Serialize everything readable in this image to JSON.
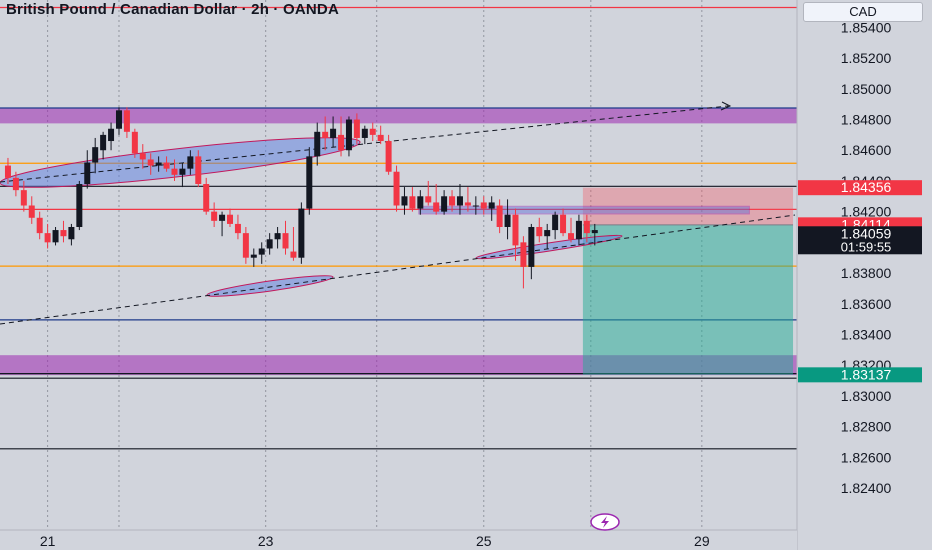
{
  "chart_data": {
    "type": "candlestick",
    "title": "British Pound / Canadian Dollar · 2h · OANDA",
    "currency": "CAD",
    "y_ticks": [
      "1.85400",
      "1.85200",
      "1.85000",
      "1.84800",
      "1.84600",
      "1.84400",
      "1.84200",
      "1.84000",
      "1.83800",
      "1.83600",
      "1.83400",
      "1.83200",
      "1.83000",
      "1.82800",
      "1.82600",
      "1.82400"
    ],
    "x_ticks": [
      {
        "label": "21",
        "t": 5.5
      },
      {
        "label": "23",
        "t": 33
      },
      {
        "label": "25",
        "t": 60.5
      },
      {
        "label": "29",
        "t": 88
      }
    ],
    "ylim": [
      1.8225,
      1.8552
    ],
    "price_labels": [
      {
        "name": "target",
        "value": 1.84356,
        "text": "1.84356",
        "color": "#f23645"
      },
      {
        "name": "entry",
        "value": 1.84114,
        "text": "1.84114",
        "color": "#f23645"
      },
      {
        "name": "last-price",
        "value": 1.84059,
        "text": "1.84059",
        "color": "#131722",
        "countdown": "01:59:55"
      },
      {
        "name": "stop",
        "value": 1.83137,
        "text": "1.83137",
        "color": "#089981"
      }
    ],
    "zones": [
      {
        "top": 1.84875,
        "bottom": 1.84775,
        "color": "#9c27b0"
      },
      {
        "top": 1.83265,
        "bottom": 1.83135,
        "color": "#9c27b0"
      }
    ],
    "h_lines": [
      {
        "value": 1.84875,
        "color": "#1e3a8a",
        "dash": ""
      },
      {
        "value": 1.84515,
        "color": "#ff9800",
        "dash": ""
      },
      {
        "value": 1.84365,
        "color": "#131722",
        "dash": ""
      },
      {
        "value": 1.84215,
        "color": "#f23645",
        "dash": ""
      },
      {
        "value": 1.83845,
        "color": "#ff9800",
        "dash": ""
      },
      {
        "value": 1.83495,
        "color": "#1e3a8a",
        "dash": ""
      },
      {
        "value": 1.83145,
        "color": "#131722",
        "dash": ""
      },
      {
        "value": 1.83115,
        "color": "#131722",
        "dash": ""
      },
      {
        "value": 1.82655,
        "color": "#131722",
        "dash": ""
      },
      {
        "value": 1.8553,
        "color": "#f23645",
        "dash": ""
      }
    ],
    "position": {
      "t_start": 73,
      "t_end": 99.5,
      "entry": 1.84114,
      "target": 1.84356,
      "stop": 1.83137
    },
    "candles": [
      [
        1.845,
        1.8455,
        1.8438,
        1.8442
      ],
      [
        1.8442,
        1.8446,
        1.843,
        1.8434
      ],
      [
        1.8434,
        1.844,
        1.842,
        1.8424
      ],
      [
        1.8424,
        1.843,
        1.8412,
        1.8416
      ],
      [
        1.8416,
        1.842,
        1.8402,
        1.8406
      ],
      [
        1.8406,
        1.8412,
        1.8396,
        1.84
      ],
      [
        1.84,
        1.841,
        1.8398,
        1.8408
      ],
      [
        1.8408,
        1.8414,
        1.84,
        1.8404
      ],
      [
        1.8402,
        1.8412,
        1.8398,
        1.841
      ],
      [
        1.841,
        1.844,
        1.8408,
        1.8438
      ],
      [
        1.8438,
        1.846,
        1.8435,
        1.8452
      ],
      [
        1.8452,
        1.8468,
        1.8445,
        1.8462
      ],
      [
        1.846,
        1.8472,
        1.8454,
        1.847
      ],
      [
        1.8466,
        1.8478,
        1.846,
        1.8474
      ],
      [
        1.8474,
        1.8488,
        1.847,
        1.8486
      ],
      [
        1.8486,
        1.8488,
        1.8468,
        1.8472
      ],
      [
        1.8472,
        1.8474,
        1.8455,
        1.8458
      ],
      [
        1.8458,
        1.8464,
        1.8448,
        1.8454
      ],
      [
        1.8454,
        1.8458,
        1.8444,
        1.845
      ],
      [
        1.845,
        1.8456,
        1.8446,
        1.8452
      ],
      [
        1.8452,
        1.8456,
        1.8446,
        1.8448
      ],
      [
        1.8448,
        1.8454,
        1.844,
        1.8444
      ],
      [
        1.8444,
        1.8452,
        1.8436,
        1.8448
      ],
      [
        1.8448,
        1.846,
        1.8444,
        1.8456
      ],
      [
        1.8456,
        1.846,
        1.8436,
        1.8438
      ],
      [
        1.8438,
        1.8442,
        1.8418,
        1.842
      ],
      [
        1.842,
        1.8426,
        1.841,
        1.8414
      ],
      [
        1.8414,
        1.842,
        1.8404,
        1.8418
      ],
      [
        1.8418,
        1.8422,
        1.841,
        1.8412
      ],
      [
        1.8412,
        1.8418,
        1.8402,
        1.8406
      ],
      [
        1.8406,
        1.841,
        1.8386,
        1.839
      ],
      [
        1.839,
        1.8396,
        1.8384,
        1.8392
      ],
      [
        1.8392,
        1.84,
        1.8386,
        1.8396
      ],
      [
        1.8396,
        1.8406,
        1.8392,
        1.8402
      ],
      [
        1.8402,
        1.841,
        1.8396,
        1.8406
      ],
      [
        1.8406,
        1.8414,
        1.8392,
        1.8396
      ],
      [
        1.8394,
        1.841,
        1.8388,
        1.839
      ],
      [
        1.839,
        1.8426,
        1.8386,
        1.8422
      ],
      [
        1.8422,
        1.8462,
        1.8418,
        1.8456
      ],
      [
        1.8456,
        1.8478,
        1.845,
        1.8472
      ],
      [
        1.8472,
        1.8482,
        1.846,
        1.8468
      ],
      [
        1.8468,
        1.8482,
        1.8462,
        1.8474
      ],
      [
        1.847,
        1.8482,
        1.8456,
        1.846
      ],
      [
        1.846,
        1.8482,
        1.8456,
        1.848
      ],
      [
        1.848,
        1.8484,
        1.8464,
        1.8468
      ],
      [
        1.8468,
        1.8476,
        1.8464,
        1.8474
      ],
      [
        1.8474,
        1.8478,
        1.8466,
        1.847
      ],
      [
        1.847,
        1.8476,
        1.8464,
        1.8466
      ],
      [
        1.8466,
        1.847,
        1.8444,
        1.8446
      ],
      [
        1.8446,
        1.845,
        1.842,
        1.8424
      ],
      [
        1.8424,
        1.8436,
        1.8418,
        1.843
      ],
      [
        1.843,
        1.8436,
        1.842,
        1.8422
      ],
      [
        1.8422,
        1.8434,
        1.8418,
        1.843
      ],
      [
        1.843,
        1.844,
        1.8424,
        1.8426
      ],
      [
        1.8426,
        1.8438,
        1.8418,
        1.842
      ],
      [
        1.842,
        1.8434,
        1.8418,
        1.843
      ],
      [
        1.843,
        1.8434,
        1.842,
        1.8424
      ],
      [
        1.8424,
        1.8438,
        1.8418,
        1.843
      ],
      [
        1.8426,
        1.8436,
        1.842,
        1.8424
      ],
      [
        1.8424,
        1.843,
        1.8418,
        1.8424
      ],
      [
        1.8426,
        1.843,
        1.8418,
        1.8422
      ],
      [
        1.8422,
        1.843,
        1.8414,
        1.8426
      ],
      [
        1.8424,
        1.8428,
        1.8406,
        1.841
      ],
      [
        1.841,
        1.8428,
        1.8402,
        1.8418
      ],
      [
        1.8418,
        1.8422,
        1.8388,
        1.8398
      ],
      [
        1.84,
        1.8404,
        1.837,
        1.8384
      ],
      [
        1.8384,
        1.8412,
        1.8376,
        1.841
      ],
      [
        1.841,
        1.8416,
        1.84,
        1.8404
      ],
      [
        1.8404,
        1.8412,
        1.8396,
        1.8408
      ],
      [
        1.8408,
        1.842,
        1.8402,
        1.8418
      ],
      [
        1.8418,
        1.8422,
        1.8404,
        1.8406
      ],
      [
        1.8406,
        1.8416,
        1.84,
        1.8402
      ],
      [
        1.8402,
        1.8418,
        1.8398,
        1.8414
      ],
      [
        1.8414,
        1.8418,
        1.84,
        1.8406
      ],
      [
        1.8406,
        1.8412,
        1.8398,
        1.8408
      ]
    ]
  }
}
